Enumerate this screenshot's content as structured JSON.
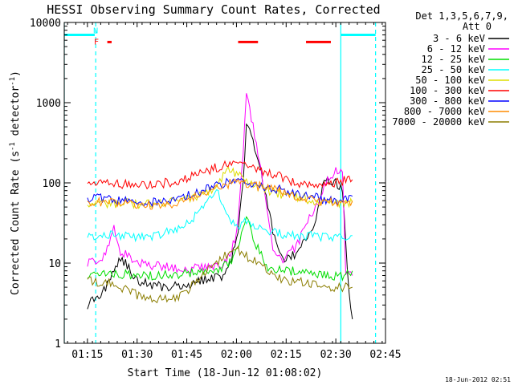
{
  "chart_data": {
    "type": "line",
    "title": "HESSI Observing Summary Count Rates, Corrected",
    "xlabel": "Start Time (18-Jun-12 01:08:02)",
    "ylabel": "Corrected Count Rate (s⁻¹ detector⁻¹)",
    "ylabel_main": "Corrected Count Rate (s",
    "ylabel_sup1": "-1",
    "ylabel_mid": " detector",
    "ylabel_sup2": "-1",
    "ylabel_end": ")",
    "x_axis": {
      "unit": "minutes since 01:08:02",
      "range": [
        0,
        97
      ],
      "ticks": [
        {
          "value": 7,
          "label": "01:15"
        },
        {
          "value": 22,
          "label": "01:30"
        },
        {
          "value": 37,
          "label": "01:45"
        },
        {
          "value": 52,
          "label": "02:00"
        },
        {
          "value": 67,
          "label": "02:15"
        },
        {
          "value": 82,
          "label": "02:30"
        },
        {
          "value": 97,
          "label": "02:45"
        }
      ]
    },
    "y_axis": {
      "scale": "log",
      "range": [
        1,
        10000
      ],
      "ticks": [
        {
          "value": 1,
          "label": "1"
        },
        {
          "value": 10,
          "label": "10"
        },
        {
          "value": 100,
          "label": "100"
        },
        {
          "value": 1000,
          "label": "1000"
        },
        {
          "value": 10000,
          "label": "10000"
        }
      ]
    },
    "legend": {
      "header": [
        "Det 1,3,5,6,7,9,",
        "Att 0"
      ],
      "placement": "right"
    },
    "series": [
      {
        "name": "3 - 6 keV",
        "color": "#000000",
        "points": [
          [
            7,
            3
          ],
          [
            12,
            4.5
          ],
          [
            17,
            12
          ],
          [
            22,
            6
          ],
          [
            30,
            5
          ],
          [
            38,
            5.5
          ],
          [
            44,
            6.5
          ],
          [
            48,
            7
          ],
          [
            50,
            10
          ],
          [
            52,
            18
          ],
          [
            54,
            90
          ],
          [
            55,
            500
          ],
          [
            57,
            350
          ],
          [
            60,
            100
          ],
          [
            63,
            25
          ],
          [
            65,
            12
          ],
          [
            68,
            11
          ],
          [
            72,
            17
          ],
          [
            76,
            35
          ],
          [
            78,
            90
          ],
          [
            80,
            110
          ],
          [
            82,
            100
          ],
          [
            84,
            80
          ],
          [
            86,
            4
          ],
          [
            87,
            2
          ]
        ]
      },
      {
        "name": "6 - 12 keV",
        "color": "#ff00ff",
        "points": [
          [
            7,
            10
          ],
          [
            12,
            12
          ],
          [
            15,
            28
          ],
          [
            17,
            14
          ],
          [
            22,
            10
          ],
          [
            30,
            9
          ],
          [
            38,
            8.5
          ],
          [
            44,
            9
          ],
          [
            48,
            10
          ],
          [
            50,
            13
          ],
          [
            52,
            22
          ],
          [
            54,
            200
          ],
          [
            55,
            1300
          ],
          [
            57,
            500
          ],
          [
            59,
            180
          ],
          [
            61,
            50
          ],
          [
            63,
            15
          ],
          [
            65,
            11
          ],
          [
            67,
            12
          ],
          [
            70,
            16
          ],
          [
            73,
            30
          ],
          [
            77,
            60
          ],
          [
            80,
            120
          ],
          [
            82,
            140
          ],
          [
            84,
            130
          ],
          [
            85,
            8
          ],
          [
            87,
            7
          ]
        ]
      },
      {
        "name": "12 - 25 keV",
        "color": "#00dd00",
        "points": [
          [
            7,
            7
          ],
          [
            15,
            7.5
          ],
          [
            22,
            7
          ],
          [
            30,
            7
          ],
          [
            38,
            7.5
          ],
          [
            44,
            8
          ],
          [
            48,
            9
          ],
          [
            51,
            11
          ],
          [
            52,
            14
          ],
          [
            54,
            25
          ],
          [
            55,
            40
          ],
          [
            57,
            20
          ],
          [
            59,
            14
          ],
          [
            61,
            9
          ],
          [
            65,
            8
          ],
          [
            70,
            8
          ],
          [
            75,
            7.5
          ],
          [
            80,
            7
          ],
          [
            85,
            7
          ],
          [
            87,
            8
          ]
        ]
      },
      {
        "name": "25 - 50 keV",
        "color": "#00ffff",
        "points": [
          [
            7,
            22
          ],
          [
            15,
            22
          ],
          [
            22,
            21
          ],
          [
            28,
            22
          ],
          [
            35,
            28
          ],
          [
            40,
            40
          ],
          [
            44,
            65
          ],
          [
            46,
            85
          ],
          [
            48,
            55
          ],
          [
            50,
            35
          ],
          [
            52,
            28
          ],
          [
            54,
            30
          ],
          [
            55,
            35
          ],
          [
            57,
            28
          ],
          [
            60,
            25
          ],
          [
            65,
            23
          ],
          [
            70,
            22
          ],
          [
            75,
            22
          ],
          [
            80,
            21
          ],
          [
            85,
            21
          ],
          [
            87,
            22
          ]
        ]
      },
      {
        "name": "50 - 100 keV",
        "color": "#dddd00",
        "points": [
          [
            7,
            55
          ],
          [
            15,
            56
          ],
          [
            22,
            55
          ],
          [
            30,
            56
          ],
          [
            38,
            64
          ],
          [
            44,
            80
          ],
          [
            48,
            120
          ],
          [
            50,
            150
          ],
          [
            52,
            130
          ],
          [
            54,
            110
          ],
          [
            56,
            95
          ],
          [
            60,
            85
          ],
          [
            64,
            75
          ],
          [
            68,
            70
          ],
          [
            72,
            65
          ],
          [
            76,
            60
          ],
          [
            80,
            58
          ],
          [
            84,
            56
          ],
          [
            87,
            57
          ]
        ]
      },
      {
        "name": "100 - 300 keV",
        "color": "#ff0000",
        "points": [
          [
            7,
            100
          ],
          [
            12,
            100
          ],
          [
            17,
            97
          ],
          [
            22,
            95
          ],
          [
            28,
            97
          ],
          [
            34,
            105
          ],
          [
            40,
            125
          ],
          [
            46,
            155
          ],
          [
            51,
            175
          ],
          [
            53,
            170
          ],
          [
            56,
            160
          ],
          [
            60,
            140
          ],
          [
            65,
            120
          ],
          [
            70,
            100
          ],
          [
            74,
            95
          ],
          [
            78,
            95
          ],
          [
            81,
            100
          ],
          [
            84,
            105
          ],
          [
            87,
            110
          ]
        ]
      },
      {
        "name": "300 - 800 keV",
        "color": "#0000ff",
        "points": [
          [
            7,
            65
          ],
          [
            12,
            64
          ],
          [
            17,
            60
          ],
          [
            22,
            58
          ],
          [
            28,
            57
          ],
          [
            34,
            62
          ],
          [
            40,
            75
          ],
          [
            46,
            92
          ],
          [
            51,
            105
          ],
          [
            53,
            108
          ],
          [
            56,
            100
          ],
          [
            60,
            92
          ],
          [
            65,
            82
          ],
          [
            70,
            73
          ],
          [
            74,
            68
          ],
          [
            78,
            63
          ],
          [
            82,
            60
          ],
          [
            84,
            60
          ],
          [
            87,
            68
          ]
        ]
      },
      {
        "name": "800 - 7000 keV",
        "color": "#ff8c00",
        "points": [
          [
            7,
            58
          ],
          [
            12,
            57
          ],
          [
            17,
            55
          ],
          [
            22,
            53
          ],
          [
            28,
            52
          ],
          [
            34,
            56
          ],
          [
            40,
            70
          ],
          [
            46,
            88
          ],
          [
            51,
            100
          ],
          [
            53,
            102
          ],
          [
            56,
            96
          ],
          [
            60,
            88
          ],
          [
            65,
            78
          ],
          [
            70,
            68
          ],
          [
            74,
            63
          ],
          [
            78,
            58
          ],
          [
            82,
            56
          ],
          [
            84,
            56
          ],
          [
            87,
            60
          ]
        ]
      },
      {
        "name": "7000 - 20000 keV",
        "color": "#8b7d00",
        "points": [
          [
            7,
            6
          ],
          [
            15,
            5.5
          ],
          [
            22,
            4
          ],
          [
            28,
            3.5
          ],
          [
            32,
            3.5
          ],
          [
            36,
            4
          ],
          [
            40,
            6
          ],
          [
            44,
            9
          ],
          [
            48,
            12
          ],
          [
            52,
            15
          ],
          [
            54,
            13
          ],
          [
            57,
            11
          ],
          [
            60,
            9
          ],
          [
            63,
            7
          ],
          [
            66,
            6
          ],
          [
            70,
            6
          ],
          [
            75,
            5.5
          ],
          [
            80,
            5
          ],
          [
            85,
            5
          ],
          [
            87,
            5
          ]
        ]
      }
    ],
    "markers": [
      {
        "label": "N",
        "color": "#00ffff",
        "x": 9.5,
        "y": 8000
      },
      {
        "label": "F",
        "color": "#ff0000",
        "x": 9.7,
        "y": 5800
      }
    ],
    "night_bars": [
      {
        "x_start": 0,
        "x_end": 9.2,
        "y": 7000,
        "color": "#00ffff"
      },
      {
        "x_start": 83.5,
        "x_end": 94,
        "y": 7000,
        "color": "#00ffff"
      }
    ],
    "flare_bars": [
      {
        "x_start": 13,
        "x_end": 14.3,
        "y": 5700,
        "color": "#ff0000"
      },
      {
        "x_start": 52.5,
        "x_end": 58.5,
        "y": 5700,
        "color": "#ff0000"
      },
      {
        "x_start": 73,
        "x_end": 80.5,
        "y": 5700,
        "color": "#ff0000"
      }
    ],
    "vlines": [
      {
        "x": 0,
        "style": "solid",
        "color": "#00ffff"
      },
      {
        "x": 9.5,
        "style": "dashed",
        "color": "#00ffff"
      },
      {
        "x": 83.5,
        "style": "solid",
        "color": "#00ffff"
      },
      {
        "x": 94,
        "style": "dashed",
        "color": "#00ffff"
      }
    ]
  },
  "footer": {
    "date_stamp": "18-Jun-2012 02:51"
  }
}
